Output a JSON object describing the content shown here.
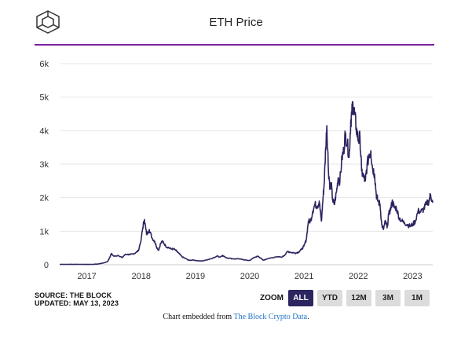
{
  "header": {
    "title": "ETH Price",
    "logo_icon": "the-block-cube-logo"
  },
  "footer": {
    "source_line": "SOURCE: THE BLOCK",
    "updated_line": "UPDATED: MAY 13, 2023",
    "embed_prefix": "Chart embedded from ",
    "embed_link": "The Block Crypto Data",
    "embed_suffix": "."
  },
  "zoom": {
    "label": "ZOOM",
    "buttons": [
      {
        "label": "ALL",
        "active": true
      },
      {
        "label": "YTD",
        "active": false
      },
      {
        "label": "12M",
        "active": false
      },
      {
        "label": "3M",
        "active": false
      },
      {
        "label": "1M",
        "active": false
      }
    ]
  },
  "colors": {
    "line": "#2b2560",
    "accent_rule": "#7b1fa2",
    "active_button": "#2b2560",
    "link": "#1f74c4"
  },
  "chart_data": {
    "type": "line",
    "title": "ETH Price",
    "ylim": [
      0,
      6000
    ],
    "yticks": [
      0,
      1000,
      2000,
      3000,
      4000,
      5000,
      6000
    ],
    "ytick_labels": [
      "0",
      "1k",
      "2k",
      "3k",
      "4k",
      "5k",
      "6k"
    ],
    "xlim": [
      2016.5,
      2023.37
    ],
    "xticks": [
      2017,
      2018,
      2019,
      2020,
      2021,
      2022,
      2023
    ],
    "xtick_labels": [
      "2017",
      "2018",
      "2019",
      "2020",
      "2021",
      "2022",
      "2023"
    ],
    "grid": true,
    "legend": false,
    "series": [
      {
        "x": [
          2016.5,
          2016.7,
          2016.9,
          2017.0,
          2017.1,
          2017.2,
          2017.3,
          2017.38,
          2017.42,
          2017.45,
          2017.5,
          2017.58,
          2017.65,
          2017.7,
          2017.75,
          2017.8,
          2017.85,
          2017.9,
          2017.95,
          2018.0,
          2018.03,
          2018.06,
          2018.1,
          2018.15,
          2018.2,
          2018.25,
          2018.28,
          2018.32,
          2018.36,
          2018.4,
          2018.45,
          2018.5,
          2018.55,
          2018.6,
          2018.65,
          2018.7,
          2018.75,
          2018.8,
          2018.88,
          2018.95,
          2019.0,
          2019.1,
          2019.2,
          2019.3,
          2019.4,
          2019.45,
          2019.5,
          2019.55,
          2019.6,
          2019.7,
          2019.8,
          2019.9,
          2020.0,
          2020.1,
          2020.15,
          2020.2,
          2020.25,
          2020.3,
          2020.4,
          2020.5,
          2020.6,
          2020.65,
          2020.7,
          2020.75,
          2020.8,
          2020.85,
          2020.9,
          2020.95,
          2021.0,
          2021.04,
          2021.08,
          2021.12,
          2021.16,
          2021.2,
          2021.25,
          2021.28,
          2021.3,
          2021.32,
          2021.35,
          2021.37,
          2021.4,
          2021.42,
          2021.45,
          2021.48,
          2021.5,
          2021.53,
          2021.56,
          2021.6,
          2021.63,
          2021.66,
          2021.7,
          2021.73,
          2021.76,
          2021.8,
          2021.83,
          2021.86,
          2021.88,
          2021.9,
          2021.93,
          2021.96,
          2022.0,
          2022.03,
          2022.06,
          2022.1,
          2022.13,
          2022.16,
          2022.2,
          2022.23,
          2022.26,
          2022.3,
          2022.33,
          2022.36,
          2022.4,
          2022.43,
          2022.46,
          2022.5,
          2022.53,
          2022.56,
          2022.6,
          2022.63,
          2022.66,
          2022.7,
          2022.75,
          2022.8,
          2022.85,
          2022.9,
          2022.95,
          2023.0,
          2023.05,
          2023.1,
          2023.15,
          2023.2,
          2023.25,
          2023.3,
          2023.33,
          2023.37
        ],
        "y": [
          12,
          13,
          11,
          10,
          12,
          20,
          50,
          90,
          210,
          330,
          250,
          280,
          210,
          300,
          310,
          300,
          320,
          360,
          420,
          750,
          1100,
          1350,
          900,
          1050,
          800,
          700,
          550,
          430,
          640,
          700,
          560,
          520,
          470,
          470,
          410,
          330,
          240,
          200,
          130,
          140,
          130,
          110,
          140,
          180,
          260,
          230,
          280,
          220,
          200,
          175,
          180,
          140,
          130,
          230,
          250,
          200,
          135,
          160,
          210,
          230,
          235,
          300,
          400,
          370,
          360,
          350,
          380,
          450,
          560,
          740,
          1300,
          1300,
          1600,
          1800,
          1750,
          1900,
          1600,
          1300,
          2000,
          2400,
          3500,
          4150,
          2800,
          2300,
          2400,
          1900,
          1800,
          2200,
          2600,
          2500,
          3200,
          3400,
          3900,
          3600,
          3200,
          4300,
          4500,
          4800,
          4500,
          4100,
          3700,
          3800,
          2800,
          2600,
          2500,
          2950,
          3300,
          3400,
          2900,
          2700,
          2100,
          1900,
          1800,
          1200,
          1050,
          1300,
          1100,
          1500,
          1700,
          1900,
          1700,
          1700,
          1400,
          1300,
          1250,
          1200,
          1150,
          1200,
          1300,
          1600,
          1580,
          1650,
          1800,
          1900,
          2100,
          1850
        ]
      }
    ]
  }
}
